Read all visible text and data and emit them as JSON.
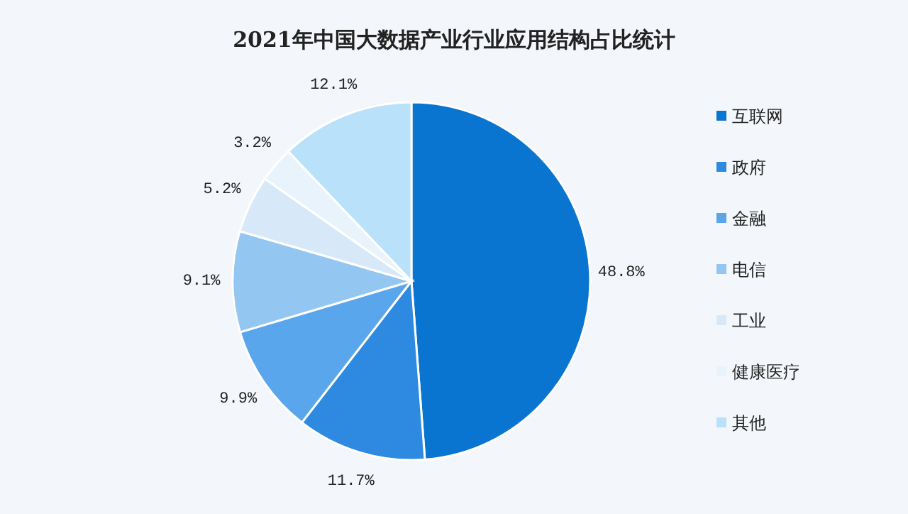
{
  "chart_data": {
    "type": "pie",
    "title": "2021年中国大数据产业行业应用结构占比统计",
    "categories": [
      "互联网",
      "政府",
      "金融",
      "电信",
      "工业",
      "健康医疗",
      "其他"
    ],
    "values": [
      48.8,
      11.7,
      9.9,
      9.1,
      5.2,
      3.2,
      12.1
    ],
    "value_labels": [
      "48.8%",
      "11.7%",
      "9.9%",
      "9.1%",
      "5.2%",
      "3.2%",
      "12.1%"
    ],
    "colors": [
      "#0a74d1",
      "#2e8ae0",
      "#5aa6ec",
      "#94c6f2",
      "#d7e9f9",
      "#e9f3fc",
      "#b9e1fa"
    ],
    "legend": "right"
  }
}
